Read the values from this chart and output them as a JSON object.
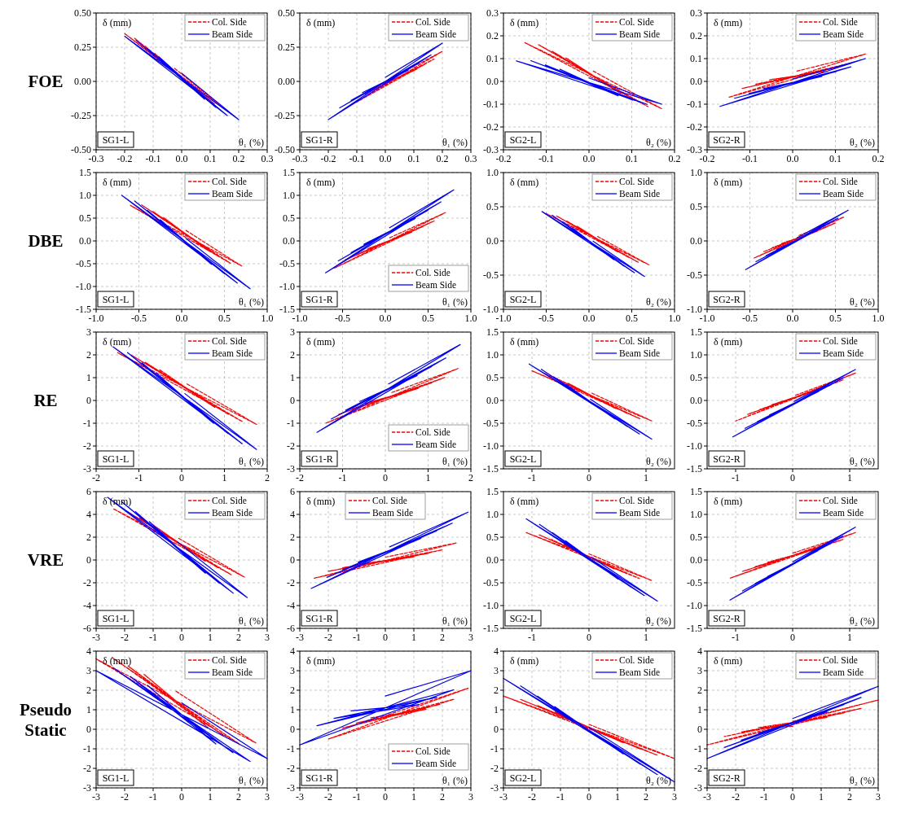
{
  "chart_data": [
    {
      "type": "line",
      "title": "FOE",
      "xlabel": "θ₁ (%)",
      "ylabel": "δ (mm)",
      "annotations": [
        "SG1-L"
      ],
      "xlim": [
        -0.3,
        0.3
      ],
      "ylim": [
        -0.5,
        0.5
      ],
      "xticks": [
        -0.3,
        -0.2,
        -0.1,
        {
          "value": 0,
          "label": "0.0"
        },
        0.1,
        0.2,
        0.3
      ],
      "yticks": [
        {
          "value": -0.5,
          "label": "-0.50"
        },
        -0.25,
        {
          "value": 0,
          "label": "0.00"
        },
        0.25,
        {
          "value": 0.5,
          "label": "0.50"
        }
      ],
      "grid": true,
      "legend": "top right",
      "series": [
        {
          "name": "Col. Side",
          "color": "#ff0000",
          "line_style": "dashed",
          "x": [
            -0.025,
            -0.095,
            0.045,
            -0.13,
            0.08,
            -0.165,
            0.115,
            -0.2,
            0.15,
            -0.025
          ],
          "values": [
            0.075,
            0.205,
            -0.055,
            0.26,
            -0.11,
            0.315,
            -0.165,
            0.35,
            -0.2,
            0.095
          ]
        },
        {
          "name": "Beam Side",
          "color": "#0000ff",
          "line_style": "solid",
          "x": [
            0,
            -0.08,
            0.08,
            -0.12,
            0.12,
            -0.16,
            0.16,
            -0.2,
            0.2,
            0
          ],
          "values": [
            0.03,
            0.18,
            -0.13,
            0.24,
            -0.19,
            0.3,
            -0.25,
            0.33,
            -0.28,
            0.06
          ]
        }
      ]
    },
    {
      "type": "line",
      "xlabel": "θ₁ (%)",
      "ylabel": "δ (mm)",
      "annotations": [
        "SG1-R"
      ],
      "xlim": [
        -0.3,
        0.3
      ],
      "ylim": [
        -0.5,
        0.5
      ],
      "xticks": [
        -0.3,
        -0.2,
        -0.1,
        {
          "value": 0,
          "label": "0.0"
        },
        0.1,
        0.2,
        0.3
      ],
      "yticks": [
        {
          "value": -0.5,
          "label": "-0.50"
        },
        -0.25,
        {
          "value": 0,
          "label": "0.00"
        },
        0.25,
        {
          "value": 0.5,
          "label": "0.50"
        }
      ],
      "grid": true,
      "legend": "top right",
      "series": [
        {
          "name": "Col. Side",
          "color": "#ff0000",
          "line_style": "dashed",
          "x": [
            0.05,
            -0.01,
            0.11,
            -0.04,
            0.14,
            -0.07,
            0.17,
            -0.1,
            0.2,
            0.05
          ],
          "values": [
            0.035,
            -0.019,
            0.089,
            -0.056,
            0.126,
            -0.093,
            0.163,
            -0.15,
            0.22,
            0.055
          ]
        },
        {
          "name": "Beam Side",
          "color": "#0000ff",
          "line_style": "solid",
          "x": [
            0,
            -0.08,
            0.08,
            -0.12,
            0.12,
            -0.16,
            0.16,
            -0.2,
            0.2,
            0
          ],
          "values": [
            0,
            -0.082,
            0.082,
            -0.138,
            0.138,
            -0.194,
            0.194,
            -0.28,
            0.28,
            0.03
          ]
        }
      ]
    },
    {
      "type": "line",
      "xlabel": "θ₂ (%)",
      "ylabel": "δ (mm)",
      "annotations": [
        "SG2-L"
      ],
      "xlim": [
        -0.2,
        0.2
      ],
      "ylim": [
        -0.3,
        0.3
      ],
      "xticks": [
        -0.2,
        -0.1,
        {
          "value": 0,
          "label": "0.0"
        },
        0.1,
        0.2
      ],
      "yticks": [
        -0.3,
        -0.2,
        -0.1,
        {
          "value": 0,
          "label": "0.0"
        },
        0.1,
        0.2,
        0.3
      ],
      "grid": true,
      "legend": "top right",
      "series": [
        {
          "name": "Col. Side",
          "color": "#ff0000",
          "line_style": "dashed",
          "x": [
            0.01,
            -0.054,
            0.074,
            -0.086,
            0.106,
            -0.118,
            0.138,
            -0.15,
            0.17,
            0.01
          ],
          "values": [
            0.025,
            0.103,
            -0.053,
            0.132,
            -0.082,
            0.161,
            -0.111,
            0.17,
            -0.12,
            0.045
          ]
        },
        {
          "name": "Beam Side",
          "color": "#0000ff",
          "line_style": "solid",
          "x": [
            0,
            -0.068,
            0.068,
            -0.102,
            0.102,
            -0.136,
            0.136,
            -0.17,
            0.17,
            0
          ],
          "values": [
            -0.005,
            0.053,
            -0.063,
            0.072,
            -0.082,
            0.091,
            -0.101,
            0.09,
            -0.1,
            0.015
          ]
        }
      ]
    },
    {
      "type": "line",
      "xlabel": "θ₂ (%)",
      "ylabel": "δ (mm)",
      "annotations": [
        "SG2-R"
      ],
      "xlim": [
        -0.2,
        0.2
      ],
      "ylim": [
        -0.3,
        0.3
      ],
      "xticks": [
        -0.2,
        -0.1,
        {
          "value": 0,
          "label": "0.0"
        },
        0.1,
        0.2
      ],
      "yticks": [
        -0.3,
        -0.2,
        -0.1,
        {
          "value": 0,
          "label": "0.0"
        },
        0.1,
        0.2,
        0.3
      ],
      "grid": true,
      "legend": "top right",
      "series": [
        {
          "name": "Col. Side",
          "color": "#ff0000",
          "line_style": "dashed",
          "x": [
            0.01,
            -0.054,
            0.074,
            -0.086,
            0.106,
            -0.118,
            0.138,
            -0.15,
            0.17,
            0.01
          ],
          "values": [
            0.025,
            0.007,
            0.043,
            -0.012,
            0.062,
            -0.031,
            0.081,
            -0.07,
            0.12,
            0.045
          ]
        },
        {
          "name": "Beam Side",
          "color": "#0000ff",
          "line_style": "solid",
          "x": [
            0,
            -0.068,
            0.068,
            -0.102,
            0.102,
            -0.136,
            0.136,
            -0.17,
            0.17,
            0
          ],
          "values": [
            -0.005,
            -0.032,
            0.022,
            -0.053,
            0.043,
            -0.074,
            0.064,
            -0.11,
            0.1,
            0.01
          ]
        }
      ]
    },
    {
      "type": "line",
      "title": "DBE",
      "xlabel": "θ₁ (%)",
      "ylabel": "δ (mm)",
      "annotations": [
        "SG1-L"
      ],
      "xlim": [
        -1,
        1
      ],
      "ylim": [
        -1.5,
        1.5
      ],
      "xticks": [
        {
          "value": -1,
          "label": "-1.0"
        },
        -0.5,
        {
          "value": 0,
          "label": "0.0"
        },
        0.5,
        {
          "value": 1,
          "label": "1.0"
        }
      ],
      "yticks": [
        -1.5,
        {
          "value": -1,
          "label": "-1.0"
        },
        -0.5,
        {
          "value": 0,
          "label": "0.0"
        },
        0.5,
        {
          "value": 1,
          "label": "1.0"
        },
        1.5
      ],
      "grid": true,
      "legend": "top right",
      "series": [
        {
          "name": "Col. Side",
          "color": "#ff0000",
          "line_style": "dashed",
          "x": [
            0.05,
            -0.21,
            0.31,
            -0.34,
            0.44,
            -0.47,
            0.57,
            -0.6,
            0.7,
            0.05
          ],
          "values": [
            0.15,
            0.51,
            -0.21,
            0.65,
            -0.35,
            0.79,
            -0.49,
            0.78,
            -0.55,
            0.23
          ]
        },
        {
          "name": "Beam Side",
          "color": "#0000ff",
          "line_style": "solid",
          "x": [
            0.05,
            -0.25,
            0.35,
            -0.4,
            0.5,
            -0.55,
            0.65,
            -0.7,
            0.8,
            0.05
          ],
          "values": [
            -0.025,
            0.465,
            -0.515,
            0.67,
            -0.72,
            0.875,
            -0.925,
            1.0,
            -1.05,
            0.055
          ]
        }
      ]
    },
    {
      "type": "line",
      "xlabel": "θ₁ (%)",
      "ylabel": "δ (mm)",
      "annotations": [
        "SG1-R"
      ],
      "xlim": [
        -1,
        1
      ],
      "ylim": [
        -1.5,
        1.5
      ],
      "xticks": [
        {
          "value": -1,
          "label": "-1.0"
        },
        -0.5,
        {
          "value": 0,
          "label": "0.0"
        },
        0.5,
        {
          "value": 1,
          "label": "1.0"
        }
      ],
      "yticks": [
        -1.5,
        {
          "value": -1,
          "label": "-1.0"
        },
        -0.5,
        {
          "value": 0,
          "label": "0.0"
        },
        0.5,
        {
          "value": 1,
          "label": "1.0"
        },
        1.5
      ],
      "grid": true,
      "legend": "bottom right",
      "series": [
        {
          "name": "Col. Side",
          "color": "#ff0000",
          "line_style": "dashed",
          "x": [
            0.05,
            -0.21,
            0.31,
            -0.34,
            0.44,
            -0.47,
            0.57,
            -0.6,
            0.7,
            0.05
          ],
          "values": [
            0.01,
            -0.174,
            0.194,
            -0.296,
            0.316,
            -0.418,
            0.438,
            -0.6,
            0.62,
            0.07
          ]
        },
        {
          "name": "Beam Side",
          "color": "#0000ff",
          "line_style": "solid",
          "x": [
            0.05,
            -0.25,
            0.35,
            -0.4,
            0.5,
            -0.55,
            0.65,
            -0.7,
            0.8,
            0.05
          ],
          "values": [
            0.21,
            -0.074,
            0.494,
            -0.256,
            0.676,
            -0.438,
            0.858,
            -0.7,
            1.12,
            0.29
          ]
        }
      ]
    },
    {
      "type": "line",
      "xlabel": "θ₂ (%)",
      "ylabel": "δ (mm)",
      "annotations": [
        "SG2-L"
      ],
      "xlim": [
        -1,
        1
      ],
      "ylim": [
        -1,
        1
      ],
      "xticks": [
        {
          "value": -1,
          "label": "-1.0"
        },
        -0.5,
        {
          "value": 0,
          "label": "0.0"
        },
        0.5,
        {
          "value": 1,
          "label": "1.0"
        }
      ],
      "yticks": [
        {
          "value": -1,
          "label": "-1.0"
        },
        -0.5,
        {
          "value": 0,
          "label": "0.0"
        },
        0.5,
        {
          "value": 1,
          "label": "1.0"
        }
      ],
      "grid": true,
      "legend": "top right",
      "series": [
        {
          "name": "Col. Side",
          "color": "#ff0000",
          "line_style": "dashed",
          "x": [
            0.1,
            -0.14,
            0.34,
            -0.26,
            0.46,
            -0.38,
            0.58,
            -0.5,
            0.7,
            0.1
          ],
          "values": [
            0.025,
            0.215,
            -0.165,
            0.29,
            -0.24,
            0.365,
            -0.315,
            0.4,
            -0.35,
            0.065
          ]
        },
        {
          "name": "Beam Side",
          "color": "#0000ff",
          "line_style": "solid",
          "x": [
            0.05,
            -0.19,
            0.29,
            -0.31,
            0.41,
            -0.43,
            0.53,
            -0.55,
            0.65,
            0.05
          ],
          "values": [
            -0.045,
            0.185,
            -0.275,
            0.28,
            -0.37,
            0.375,
            -0.465,
            0.43,
            -0.52,
            -0.005
          ]
        }
      ]
    },
    {
      "type": "line",
      "xlabel": "θ₂ (%)",
      "ylabel": "δ (mm)",
      "annotations": [
        "SG2-R"
      ],
      "xlim": [
        -1,
        1
      ],
      "ylim": [
        -1,
        1
      ],
      "xticks": [
        {
          "value": -1,
          "label": "-1.0"
        },
        -0.5,
        {
          "value": 0,
          "label": "0.0"
        },
        0.5,
        {
          "value": 1,
          "label": "1.0"
        }
      ],
      "yticks": [
        {
          "value": -1,
          "label": "-1.0"
        },
        -0.5,
        {
          "value": 0,
          "label": "0.0"
        },
        0.5,
        {
          "value": 1,
          "label": "1.0"
        }
      ],
      "grid": true,
      "legend": "top right",
      "series": [
        {
          "name": "Col. Side",
          "color": "#ff0000",
          "line_style": "dashed",
          "x": [
            0.075,
            -0.135,
            0.285,
            -0.24,
            0.39,
            -0.345,
            0.495,
            -0.45,
            0.6,
            0.075
          ],
          "values": [
            0.05,
            -0.04,
            0.14,
            -0.1,
            0.2,
            -0.16,
            0.26,
            -0.25,
            0.35,
            0.08
          ]
        },
        {
          "name": "Beam Side",
          "color": "#0000ff",
          "line_style": "solid",
          "x": [
            0.05,
            -0.19,
            0.29,
            -0.31,
            0.41,
            -0.43,
            0.53,
            -0.55,
            0.65,
            0.05
          ],
          "values": [
            0.015,
            -0.129,
            0.159,
            -0.216,
            0.246,
            -0.303,
            0.333,
            -0.42,
            0.45,
            0.045
          ]
        }
      ]
    },
    {
      "type": "line",
      "title": "RE",
      "xlabel": "θ₁ (%)",
      "ylabel": "δ (mm)",
      "annotations": [
        "SG1-L"
      ],
      "xlim": [
        -2,
        2
      ],
      "ylim": [
        -3,
        3
      ],
      "xticks": [
        -2,
        -1,
        0,
        1,
        2
      ],
      "yticks": [
        -3,
        -2,
        -1,
        0,
        1,
        2,
        3
      ],
      "grid": true,
      "legend": "top right",
      "series": [
        {
          "name": "Col. Side",
          "color": "#ff0000",
          "line_style": "dashed",
          "x": [
            0.125,
            -0.525,
            0.775,
            -0.85,
            1.1,
            -1.175,
            1.425,
            -1.5,
            1.75,
            0.125
          ],
          "values": [
            0.525,
            1.355,
            -0.305,
            1.67,
            -0.62,
            1.985,
            -0.935,
            2.1,
            -1.05,
            0.725
          ]
        },
        {
          "name": "Beam Side",
          "color": "#0000ff",
          "line_style": "solid",
          "x": [
            0.075,
            -0.595,
            0.745,
            -0.93,
            1.08,
            -1.265,
            1.415,
            -1.6,
            1.75,
            0.075
          ],
          "values": [
            0.1,
            1.2,
            -1.0,
            1.65,
            -1.45,
            2.1,
            -1.9,
            2.35,
            -2.15,
            0.3
          ]
        }
      ]
    },
    {
      "type": "line",
      "xlabel": "θ₁ (%)",
      "ylabel": "δ (mm)",
      "annotations": [
        "SG1-R"
      ],
      "xlim": [
        -2,
        2
      ],
      "ylim": [
        -3,
        3
      ],
      "xticks": [
        -2,
        -1,
        0,
        1,
        2
      ],
      "yticks": [
        -3,
        -2,
        -1,
        0,
        1,
        2,
        3
      ],
      "grid": true,
      "legend": "bottom right",
      "series": [
        {
          "name": "Col. Side",
          "color": "#ff0000",
          "line_style": "dashed",
          "x": [
            0.15,
            -0.47,
            0.77,
            -0.78,
            1.08,
            -1.09,
            1.39,
            -1.4,
            1.7,
            0.15
          ],
          "values": [
            0.2,
            -0.13,
            0.53,
            -0.37,
            0.77,
            -0.61,
            1.01,
            -1.0,
            1.4,
            0.35
          ]
        },
        {
          "name": "Beam Side",
          "color": "#0000ff",
          "line_style": "solid",
          "x": [
            0.075,
            -0.595,
            0.745,
            -0.93,
            1.08,
            -1.265,
            1.415,
            -1.6,
            1.75,
            0.075
          ],
          "values": [
            0.525,
            -0.045,
            1.095,
            -0.43,
            1.48,
            -0.815,
            1.865,
            -1.4,
            2.45,
            0.725
          ]
        }
      ]
    },
    {
      "type": "line",
      "xlabel": "θ₂ (%)",
      "ylabel": "δ (mm)",
      "annotations": [
        "SG2-L"
      ],
      "xlim": [
        -1.5,
        1.5
      ],
      "ylim": [
        -1.5,
        1.5
      ],
      "xticks": [
        -1,
        0,
        1
      ],
      "yticks": [
        -1.5,
        {
          "value": -1,
          "label": "-1.0"
        },
        -0.5,
        {
          "value": 0,
          "label": "0.0"
        },
        0.5,
        {
          "value": 1,
          "label": "1.0"
        },
        1.5
      ],
      "grid": true,
      "legend": "top right",
      "series": [
        {
          "name": "Col. Side",
          "color": "#ff0000",
          "line_style": "dashed",
          "x": [
            0.05,
            -0.37,
            0.47,
            -0.58,
            0.68,
            -0.79,
            0.89,
            -1.0,
            1.1,
            0.05
          ],
          "values": [
            0.1,
            0.38,
            -0.18,
            0.49,
            -0.29,
            0.6,
            -0.4,
            0.65,
            -0.45,
            0.16
          ]
        },
        {
          "name": "Beam Side",
          "color": "#0000ff",
          "line_style": "solid",
          "x": [
            0.025,
            -0.405,
            0.455,
            -0.62,
            0.67,
            -0.835,
            0.885,
            -1.05,
            1.1,
            0.025
          ],
          "values": [
            -0.025,
            0.355,
            -0.405,
            0.52,
            -0.57,
            0.685,
            -0.735,
            0.8,
            -0.85,
            0.025
          ]
        }
      ]
    },
    {
      "type": "line",
      "xlabel": "θ₂ (%)",
      "ylabel": "δ (mm)",
      "annotations": [
        "SG2-R"
      ],
      "xlim": [
        -1.5,
        1.5
      ],
      "ylim": [
        -1.5,
        1.5
      ],
      "xticks": [
        -1,
        0,
        1
      ],
      "yticks": [
        -1.5,
        {
          "value": -1,
          "label": "-1.0"
        },
        -0.5,
        {
          "value": 0,
          "label": "0.0"
        },
        0.5,
        {
          "value": 1,
          "label": "1.0"
        },
        1.5
      ],
      "grid": true,
      "legend": "top right",
      "series": [
        {
          "name": "Col. Side",
          "color": "#ff0000",
          "line_style": "dashed",
          "x": [
            0.05,
            -0.37,
            0.47,
            -0.58,
            0.68,
            -0.79,
            0.89,
            -1.0,
            1.1,
            0.05
          ],
          "values": [
            0.075,
            -0.095,
            0.245,
            -0.2,
            0.35,
            -0.305,
            0.455,
            -0.45,
            0.6,
            0.115
          ]
        },
        {
          "name": "Beam Side",
          "color": "#0000ff",
          "line_style": "solid",
          "x": [
            0.025,
            -0.405,
            0.455,
            -0.62,
            0.67,
            -0.835,
            0.885,
            -1.05,
            1.1,
            0.025
          ],
          "values": [
            -0.06,
            -0.316,
            0.196,
            -0.464,
            0.344,
            -0.612,
            0.492,
            -0.8,
            0.68,
            -0.02
          ]
        }
      ]
    },
    {
      "type": "line",
      "title": "VRE",
      "xlabel": "θ₁ (%)",
      "ylabel": "δ (mm)",
      "annotations": [
        "SG1-L"
      ],
      "xlim": [
        -3,
        3
      ],
      "ylim": [
        -6,
        6
      ],
      "xticks": [
        -3,
        -2,
        -1,
        0,
        1,
        2,
        3
      ],
      "yticks": [
        -6,
        -4,
        -2,
        0,
        2,
        4,
        6
      ],
      "grid": true,
      "legend": "top right",
      "series": [
        {
          "name": "Col. Side",
          "color": "#ff0000",
          "line_style": "dashed",
          "x": [
            -0.1,
            -1.02,
            0.82,
            -1.48,
            1.28,
            -1.94,
            1.74,
            -2.4,
            2.2,
            -0.1
          ],
          "values": [
            1.5,
            3.1,
            -0.1,
            3.7,
            -0.7,
            4.3,
            -1.3,
            4.5,
            -1.5,
            1.9
          ]
        },
        {
          "name": "Beam Side",
          "color": "#0000ff",
          "line_style": "solid",
          "x": [
            -0.15,
            -1.13,
            0.83,
            -1.62,
            1.32,
            -2.11,
            1.81,
            -2.6,
            2.3,
            -0.15
          ],
          "values": [
            1.1,
            3.36,
            -1.16,
            4.24,
            -2.04,
            5.12,
            -2.92,
            5.5,
            -3.3,
            1.6
          ]
        }
      ]
    },
    {
      "type": "line",
      "xlabel": "θ₁ (%)",
      "ylabel": "δ (mm)",
      "annotations": [
        "SG1-R"
      ],
      "xlim": [
        -3,
        3
      ],
      "ylim": [
        -6,
        6
      ],
      "xticks": [
        -3,
        -2,
        -1,
        0,
        1,
        2,
        3
      ],
      "yticks": [
        -6,
        -4,
        -2,
        0,
        2,
        4,
        6
      ],
      "grid": true,
      "legend": "top",
      "series": [
        {
          "name": "Col. Side",
          "color": "#ff0000",
          "line_style": "dashed",
          "x": [
            0,
            -1.0,
            1.0,
            -1.5,
            1.5,
            -2.0,
            2.0,
            -2.5,
            2.5,
            0
          ],
          "values": [
            -0.05,
            -0.37,
            0.27,
            -0.68,
            0.58,
            -0.99,
            0.89,
            -1.6,
            1.5,
            0.25
          ]
        },
        {
          "name": "Beam Side",
          "color": "#0000ff",
          "line_style": "solid",
          "x": [
            0.15,
            -0.95,
            1.25,
            -1.5,
            1.8,
            -2.05,
            2.35,
            -2.6,
            2.9,
            0.15
          ],
          "values": [
            0.85,
            -0.19,
            1.89,
            -0.86,
            2.56,
            -1.53,
            3.23,
            -2.5,
            4.2,
            1.15
          ]
        }
      ]
    },
    {
      "type": "line",
      "xlabel": "θ₂ (%)",
      "ylabel": "δ (mm)",
      "annotations": [
        "SG2-L"
      ],
      "xlim": [
        -1.5,
        1.5
      ],
      "ylim": [
        -1.5,
        1.5
      ],
      "xticks": [
        -1,
        0,
        1
      ],
      "yticks": [
        -1.5,
        {
          "value": -1,
          "label": "-1.0"
        },
        -0.5,
        {
          "value": 0,
          "label": "0.0"
        },
        0.5,
        {
          "value": 1,
          "label": "1.0"
        },
        1.5
      ],
      "grid": true,
      "legend": "top right",
      "series": [
        {
          "name": "Col. Side",
          "color": "#ff0000",
          "line_style": "dashed",
          "x": [
            0,
            -0.44,
            0.44,
            -0.66,
            0.66,
            -0.88,
            0.88,
            -1.1,
            1.1,
            0
          ],
          "values": [
            0.075,
            0.345,
            -0.195,
            0.45,
            -0.3,
            0.555,
            -0.405,
            0.6,
            -0.45,
            0.135
          ]
        },
        {
          "name": "Beam Side",
          "color": "#0000ff",
          "line_style": "solid",
          "x": [
            0.05,
            -0.41,
            0.51,
            -0.64,
            0.74,
            -0.87,
            0.97,
            -1.1,
            1.2,
            0.05
          ],
          "values": [
            0,
            0.42,
            -0.42,
            0.6,
            -0.6,
            0.78,
            -0.78,
            0.9,
            -0.9,
            0.06
          ]
        }
      ]
    },
    {
      "type": "line",
      "xlabel": "θ₂ (%)",
      "ylabel": "δ (mm)",
      "annotations": [
        "SG2-R"
      ],
      "xlim": [
        -1.5,
        1.5
      ],
      "ylim": [
        -1.5,
        1.5
      ],
      "xticks": [
        -1,
        0,
        1
      ],
      "yticks": [
        -1.5,
        {
          "value": -1,
          "label": "-1.0"
        },
        -0.5,
        {
          "value": 0,
          "label": "0.0"
        },
        0.5,
        {
          "value": 1,
          "label": "1.0"
        },
        1.5
      ],
      "grid": true,
      "legend": "top right",
      "series": [
        {
          "name": "Col. Side",
          "color": "#ff0000",
          "line_style": "dashed",
          "x": [
            0,
            -0.44,
            0.44,
            -0.66,
            0.66,
            -0.88,
            0.88,
            -1.1,
            1.1,
            0
          ],
          "values": [
            0.1,
            -0.05,
            0.25,
            -0.15,
            0.35,
            -0.25,
            0.45,
            -0.4,
            0.6,
            0.15
          ]
        },
        {
          "name": "Beam Side",
          "color": "#0000ff",
          "line_style": "solid",
          "x": [
            0,
            -0.44,
            0.44,
            -0.66,
            0.66,
            -0.88,
            0.88,
            -1.1,
            1.1,
            0
          ],
          "values": [
            -0.08,
            -0.36,
            0.2,
            -0.52,
            0.36,
            -0.68,
            0.52,
            -0.88,
            0.72,
            -0.04
          ]
        }
      ]
    },
    {
      "type": "line",
      "title": "Pseudo Static",
      "xlabel": "θ₁ (%)",
      "ylabel": "δ (mm)",
      "annotations": [
        "SG1-L"
      ],
      "xlim": [
        -3,
        3
      ],
      "ylim": [
        -3,
        4
      ],
      "xticks": [
        -3,
        -2,
        -1,
        0,
        1,
        2,
        3
      ],
      "yticks": [
        -3,
        -2,
        -1,
        0,
        1,
        2,
        3,
        4
      ],
      "grid": true,
      "legend": "top right",
      "series": [
        {
          "name": "Col. Side",
          "color": "#ff0000",
          "line_style": "dashed",
          "x": [
            -0.2,
            -1.32,
            0.92,
            -1.88,
            1.48,
            -2.44,
            2.04,
            -3,
            2.6,
            -0.2
          ],
          "values": [
            1.45,
            2.81,
            0.09,
            3.24,
            -0.34,
            3.67,
            -0.77,
            3.6,
            -0.7,
            1.95
          ]
        },
        {
          "name": "Beam Side",
          "color": "#0000ff",
          "line_style": "solid",
          "x": [
            0,
            -1.2,
            1.2,
            -1.8,
            1.8,
            -2.4,
            2.4,
            -3,
            3,
            0
          ],
          "values": [
            0.75,
            2.25,
            -0.75,
            2.7,
            -1.2,
            3.15,
            -1.65,
            3,
            -1.5,
            1.35
          ]
        }
      ]
    },
    {
      "type": "line",
      "xlabel": "θ₁ (%)",
      "ylabel": "δ (mm)",
      "annotations": [
        "SG1-R"
      ],
      "xlim": [
        -3,
        3
      ],
      "ylim": [
        -3,
        4
      ],
      "xticks": [
        -3,
        -2,
        -1,
        0,
        1,
        2,
        3
      ],
      "yticks": [
        -3,
        -2,
        -1,
        0,
        1,
        2,
        3,
        4
      ],
      "grid": true,
      "legend": "bottom right",
      "series": [
        {
          "name": "Col. Side",
          "color": "#ff0000",
          "line_style": "dashed",
          "x": [
            0.45,
            -0.53,
            1.43,
            -1.02,
            1.92,
            -1.51,
            2.41,
            -2,
            2.9,
            0.1
          ],
          "values": [
            0.8,
            0.58,
            1.02,
            0.32,
            1.28,
            0.06,
            1.54,
            -0.5,
            2.1,
            0.75
          ]
        },
        {
          "name": "Beam Side",
          "color": "#0000ff",
          "line_style": "solid",
          "x": [
            0,
            -1.2,
            1.2,
            -1.8,
            1.8,
            -2.4,
            2.4,
            -3,
            3,
            0
          ],
          "values": [
            1.1,
            0.94,
            1.26,
            0.56,
            1.64,
            0.18,
            2.02,
            -0.8,
            3,
            1.7
          ]
        }
      ]
    },
    {
      "type": "line",
      "xlabel": "θ₂ (%)",
      "ylabel": "δ (mm)",
      "annotations": [
        "SG2-L"
      ],
      "xlim": [
        -3,
        3
      ],
      "ylim": [
        -3,
        4
      ],
      "xticks": [
        -3,
        -2,
        -1,
        0,
        1,
        2,
        3
      ],
      "yticks": [
        -3,
        -2,
        -1,
        0,
        1,
        2,
        3,
        4
      ],
      "grid": true,
      "legend": "top right",
      "series": [
        {
          "name": "Col. Side",
          "color": "#ff0000",
          "line_style": "dashed",
          "x": [
            0,
            -1.2,
            1.2,
            -1.8,
            1.8,
            -2.4,
            2.4,
            -3,
            3,
            0
          ],
          "values": [
            0.1,
            0.89,
            -0.69,
            1.21,
            -1.01,
            1.53,
            -1.33,
            1.7,
            -1.5,
            0.25
          ]
        },
        {
          "name": "Beam Side",
          "color": "#0000ff",
          "line_style": "solid",
          "x": [
            0,
            -1.2,
            1.2,
            -1.8,
            1.8,
            -2.4,
            2.4,
            -3,
            3,
            0
          ],
          "values": [
            -0.05,
            1.16,
            -1.26,
            1.69,
            -1.79,
            2.22,
            -2.32,
            2.6,
            -2.7,
            0.1
          ]
        }
      ]
    },
    {
      "type": "line",
      "xlabel": "θ₂ (%)",
      "ylabel": "δ (mm)",
      "annotations": [
        "SG2-R"
      ],
      "xlim": [
        -3,
        3
      ],
      "ylim": [
        -3,
        4
      ],
      "xticks": [
        -3,
        -2,
        -1,
        0,
        1,
        2,
        3
      ],
      "yticks": [
        -3,
        -2,
        -1,
        0,
        1,
        2,
        3,
        4
      ],
      "grid": true,
      "legend": "top right",
      "series": [
        {
          "name": "Col. Side",
          "color": "#ff0000",
          "line_style": "dashed",
          "x": [
            0,
            -1.2,
            1.2,
            -1.8,
            1.8,
            -2.4,
            2.4,
            -3,
            3,
            0
          ],
          "values": [
            0.15,
            0.09,
            0.61,
            -0.14,
            0.84,
            -0.37,
            1.07,
            -0.8,
            1.5,
            0.4
          ]
        },
        {
          "name": "Beam Side",
          "color": "#0000ff",
          "line_style": "solid",
          "x": [
            0,
            -1.2,
            1.2,
            -1.8,
            1.8,
            -2.4,
            2.4,
            -3,
            3,
            0
          ],
          "values": [
            0.35,
            -0.19,
            0.89,
            -0.56,
            1.26,
            -0.93,
            1.63,
            -1.5,
            2.2,
            0.55
          ]
        }
      ]
    }
  ]
}
